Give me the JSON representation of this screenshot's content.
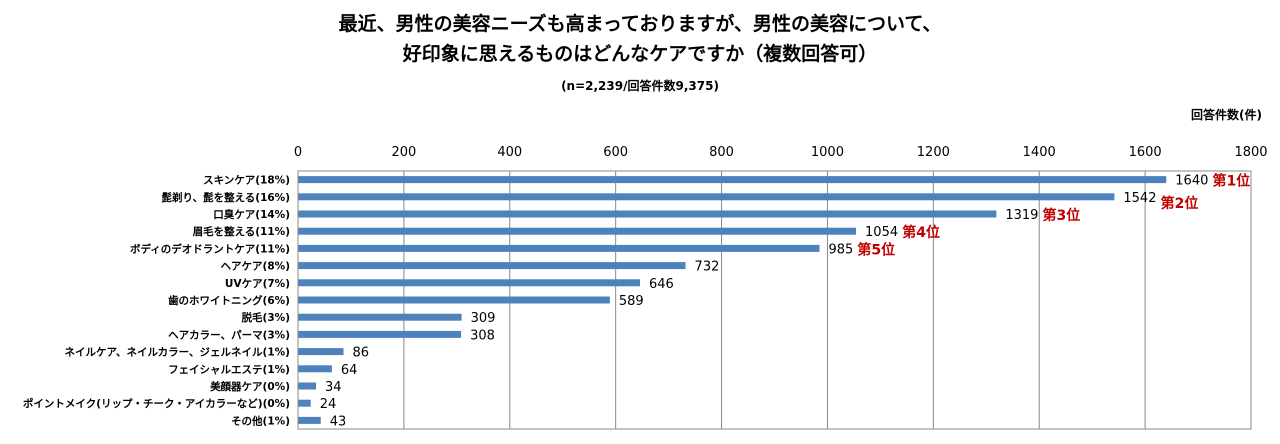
{
  "chart_data": {
    "type": "bar",
    "orientation": "horizontal",
    "title_lines": [
      "最近、男性の美容ニーズも高まっておりますが、男性の美容について、",
      "好印象に思えるものはどんなケアですか（複数回答可）"
    ],
    "subtitle": "(n=2,239/回答件数9,375)",
    "xlabel": "回答件数(件)",
    "xlim": [
      0,
      1800
    ],
    "xticks": [
      "0",
      "200",
      "400",
      "600",
      "800",
      "1000",
      "1200",
      "1400",
      "1600",
      "1800"
    ],
    "grid": true,
    "bar_color": "#4f81bd",
    "rank_color": "#c00000",
    "categories": [
      "スキンケア(18%)",
      "髭剃り、髭を整える(16%)",
      "口臭ケア(14%)",
      "眉毛を整える(11%)",
      "ボディのデオドラントケア(11%)",
      "ヘアケア(8%)",
      "UVケア(7%)",
      "歯のホワイトニング(6%)",
      "脱毛(3%)",
      "ヘアカラー、パーマ(3%)",
      "ネイルケア、ネイルカラー、ジェルネイル(1%)",
      "フェイシャルエステ(1%)",
      "美顔器ケア(0%)",
      "ポイントメイク(リップ・チーク・アイカラーなど)(0%)",
      "その他(1%)"
    ],
    "values": [
      1640,
      1542,
      1319,
      1054,
      985,
      732,
      646,
      589,
      309,
      308,
      86,
      64,
      34,
      24,
      43
    ],
    "rank_labels": [
      "第1位",
      "第2位",
      "第3位",
      "第4位",
      "第5位"
    ]
  }
}
